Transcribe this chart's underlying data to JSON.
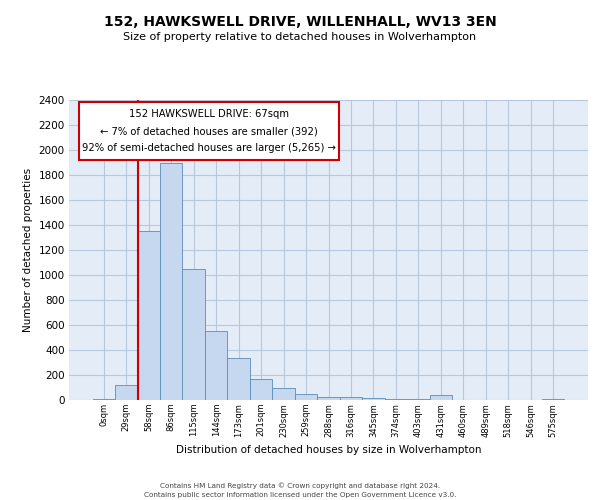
{
  "title": "152, HAWKSWELL DRIVE, WILLENHALL, WV13 3EN",
  "subtitle": "Size of property relative to detached houses in Wolverhampton",
  "xlabel": "Distribution of detached houses by size in Wolverhampton",
  "ylabel": "Number of detached properties",
  "footer_line1": "Contains HM Land Registry data © Crown copyright and database right 2024.",
  "footer_line2": "Contains public sector information licensed under the Open Government Licence v3.0.",
  "bar_color": "#c5d8f0",
  "bar_edge_color": "#5b8db8",
  "grid_color": "#b8c8dc",
  "background_color": "#e4ecf7",
  "annotation_border_color": "#cc0000",
  "red_line_color": "#cc0000",
  "categories": [
    "0sqm",
    "29sqm",
    "58sqm",
    "86sqm",
    "115sqm",
    "144sqm",
    "173sqm",
    "201sqm",
    "230sqm",
    "259sqm",
    "288sqm",
    "316sqm",
    "345sqm",
    "374sqm",
    "403sqm",
    "431sqm",
    "460sqm",
    "489sqm",
    "518sqm",
    "546sqm",
    "575sqm"
  ],
  "values": [
    10,
    120,
    1350,
    1900,
    1050,
    550,
    340,
    170,
    100,
    52,
    28,
    22,
    18,
    12,
    5,
    38,
    4,
    4,
    4,
    4,
    8
  ],
  "annotation_line1": "152 HAWKSWELL DRIVE: 67sqm",
  "annotation_line2": "← 7% of detached houses are smaller (392)",
  "annotation_line3": "92% of semi-detached houses are larger (5,265) →",
  "red_line_bin_index": 2,
  "ylim": [
    0,
    2400
  ],
  "yticks": [
    0,
    200,
    400,
    600,
    800,
    1000,
    1200,
    1400,
    1600,
    1800,
    2000,
    2200,
    2400
  ]
}
